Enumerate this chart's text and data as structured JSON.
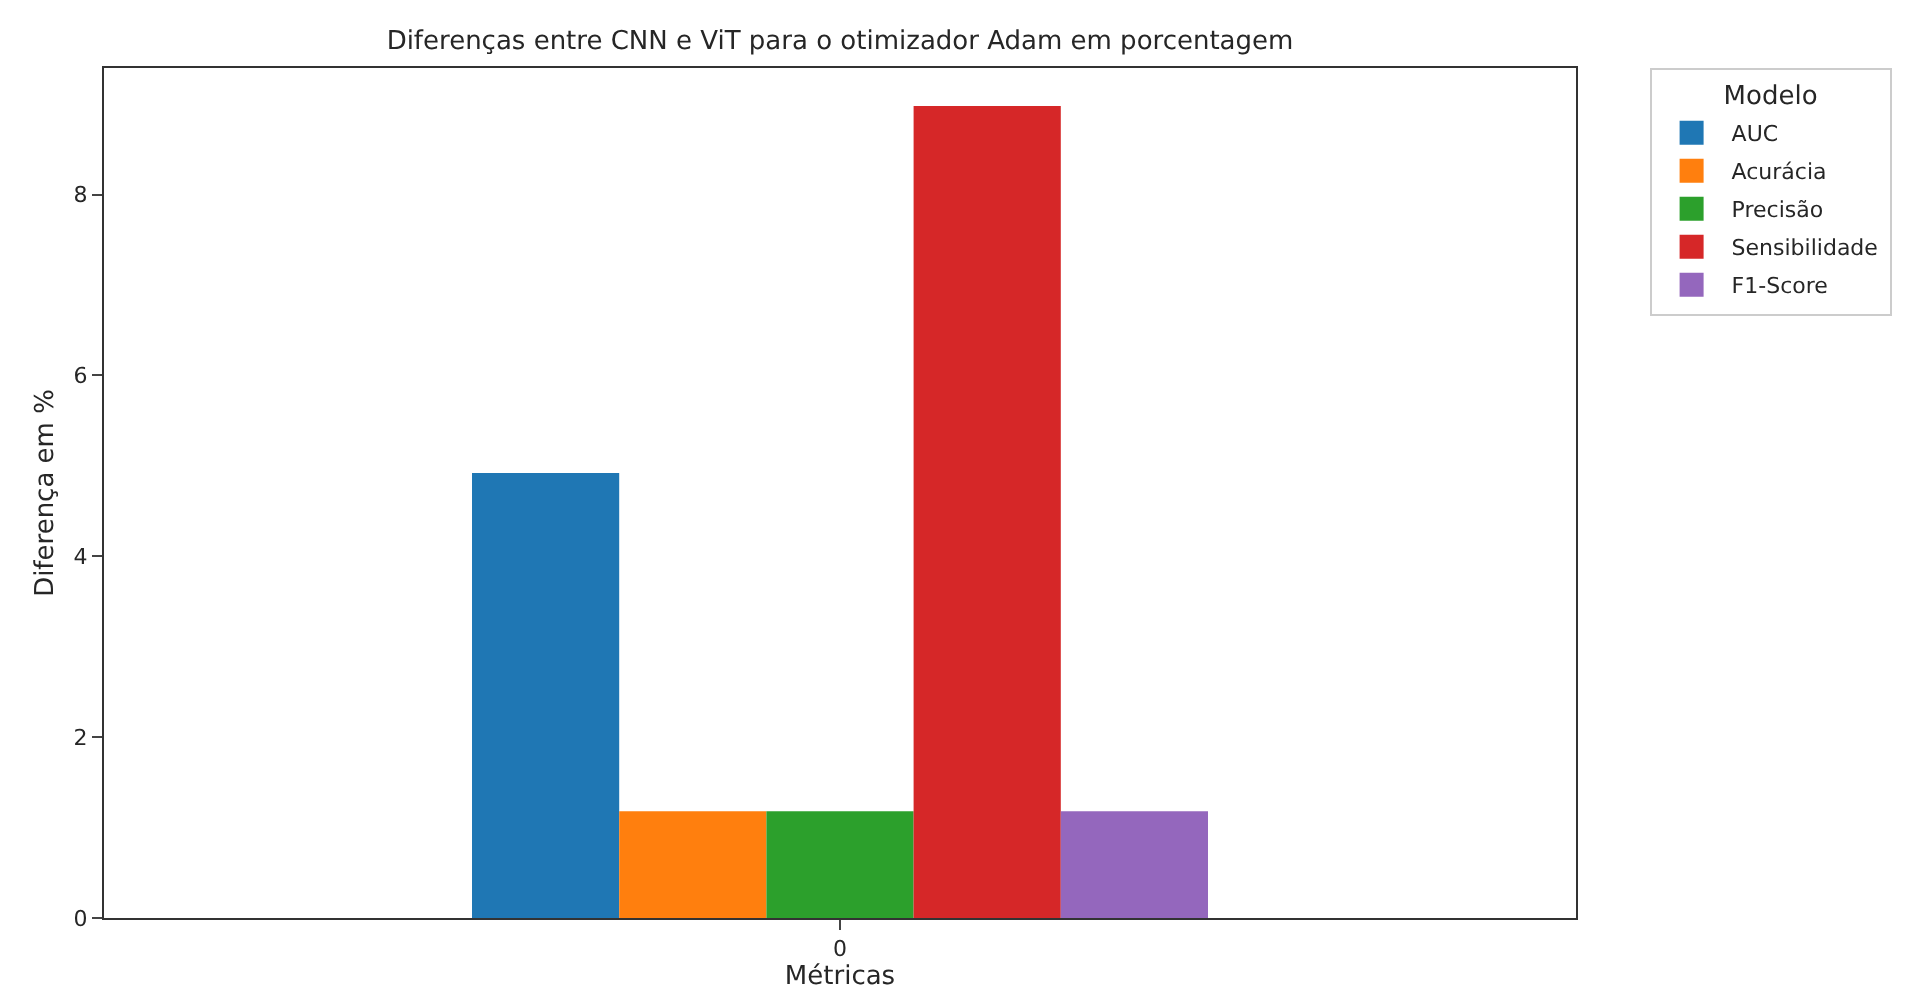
{
  "chart_data": {
    "type": "bar",
    "title": "Diferenças entre CNN e ViT para o otimizador Adam em porcentagem",
    "xlabel": "Métricas",
    "ylabel": "Diferença em %",
    "legend_title": "Modelo",
    "categories": [
      "0"
    ],
    "series": [
      {
        "name": "AUC",
        "color": "#1f77b4",
        "values": [
          4.92
        ]
      },
      {
        "name": "Acurácia",
        "color": "#ff7f0e",
        "values": [
          1.18
        ]
      },
      {
        "name": "Precisão",
        "color": "#2ca02c",
        "values": [
          1.18
        ]
      },
      {
        "name": "Sensibilidade",
        "color": "#d62728",
        "values": [
          8.98
        ]
      },
      {
        "name": "F1-Score",
        "color": "#9467bd",
        "values": [
          1.18
        ]
      }
    ],
    "ylim": [
      0,
      9.4
    ],
    "yticks": [
      0,
      2,
      4,
      6,
      8
    ],
    "legend": "top right"
  }
}
